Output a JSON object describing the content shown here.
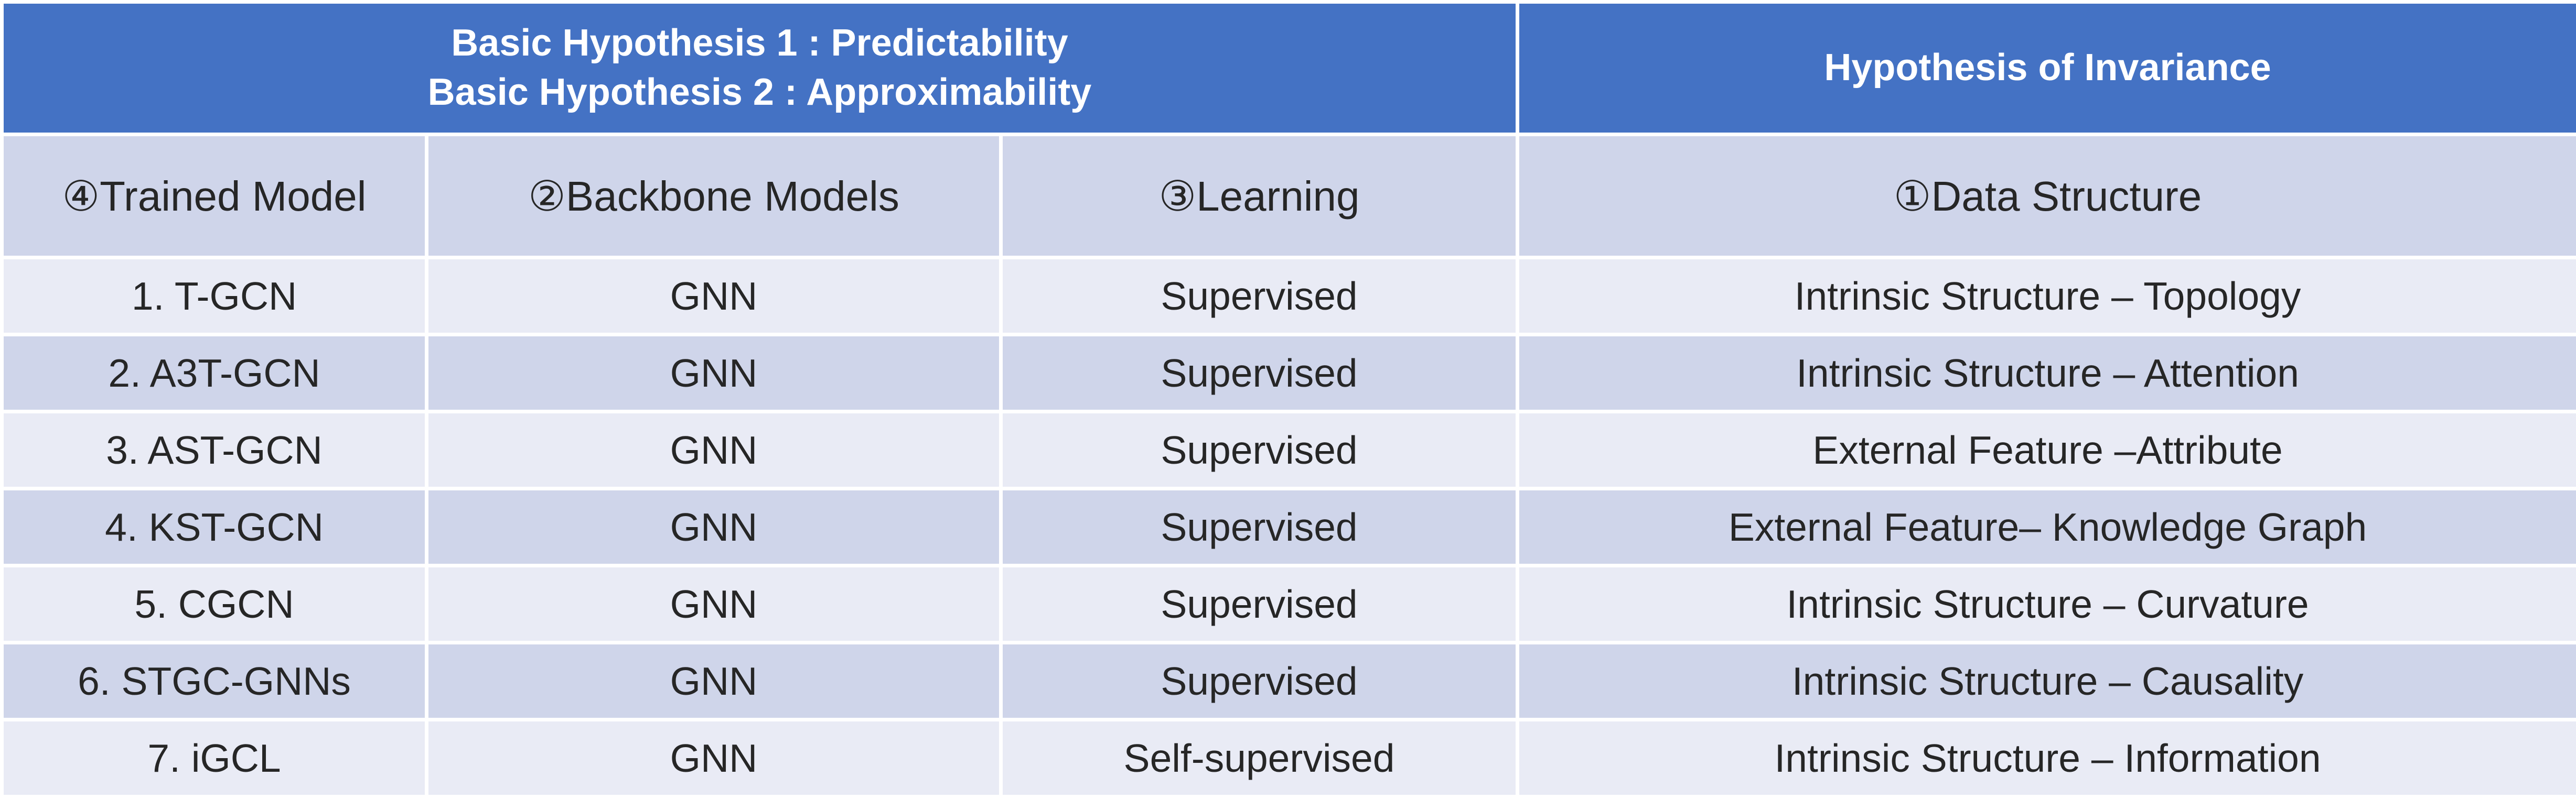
{
  "header": {
    "hypothesis_line_1": "Basic Hypothesis 1 : Predictability",
    "hypothesis_line_2": "Basic Hypothesis 2 : Approximability",
    "invariance": "Hypothesis of Invariance"
  },
  "columns": {
    "trained_model": "④Trained Model",
    "backbone_models": "②Backbone Models",
    "learning": "③Learning",
    "data_structure": "①Data Structure"
  },
  "rows": [
    {
      "model": "1. T-GCN",
      "backbone": "GNN",
      "learning": "Supervised",
      "structure": "Intrinsic Structure – Topology"
    },
    {
      "model": "2. A3T-GCN",
      "backbone": "GNN",
      "learning": "Supervised",
      "structure": "Intrinsic Structure – Attention"
    },
    {
      "model": "3. AST-GCN",
      "backbone": "GNN",
      "learning": "Supervised",
      "structure": "External Feature  –Attribute"
    },
    {
      "model": "4. KST-GCN",
      "backbone": "GNN",
      "learning": "Supervised",
      "structure": "External Feature– Knowledge Graph"
    },
    {
      "model": "5. CGCN",
      "backbone": "GNN",
      "learning": "Supervised",
      "structure": "Intrinsic Structure – Curvature"
    },
    {
      "model": "6. STGC-GNNs",
      "backbone": "GNN",
      "learning": "Supervised",
      "structure": "Intrinsic Structure – Causality"
    },
    {
      "model": "7. iGCL",
      "backbone": "GNN",
      "learning": "Self-supervised",
      "structure": "Intrinsic Structure – Information"
    }
  ],
  "colors": {
    "header_bg": "#4472c4",
    "subheader_bg": "#cfd5ea",
    "row_light_bg": "#e9ebf5",
    "row_dark_bg": "#cfd5ea"
  }
}
